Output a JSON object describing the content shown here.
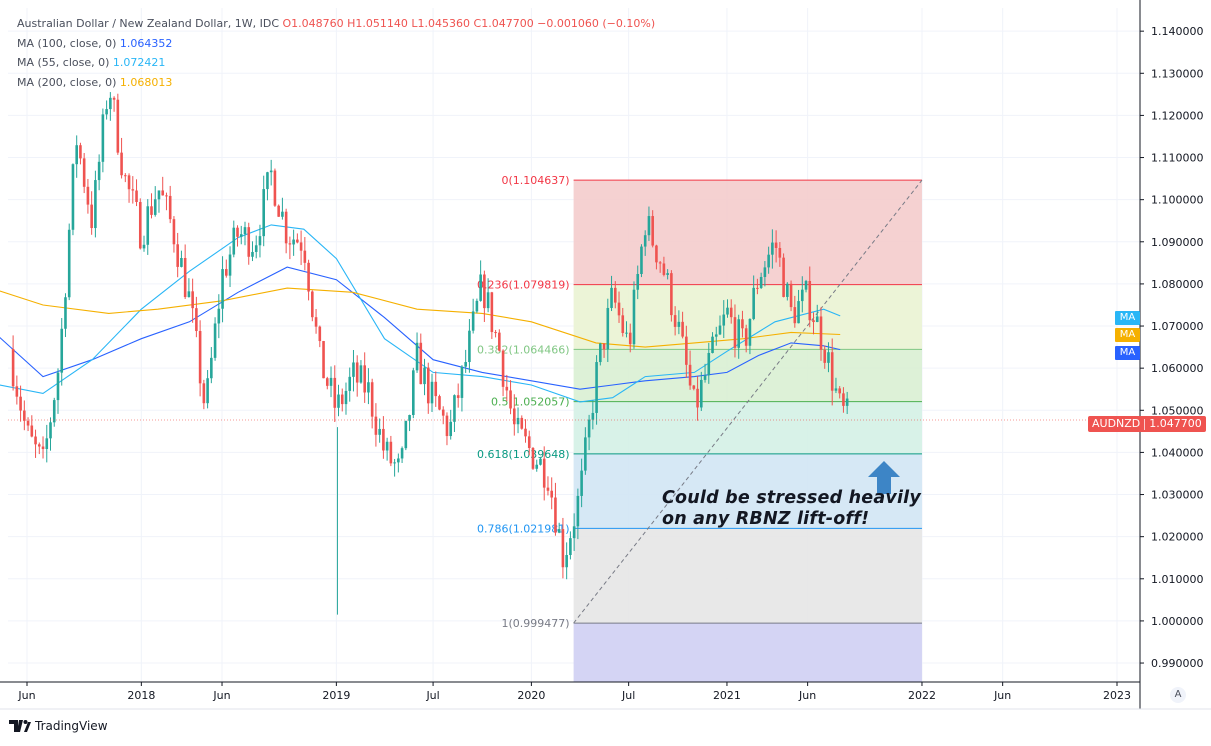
{
  "legend": {
    "title": "Australian Dollar / New Zealand Dollar, 1W, IDC",
    "ohlc": "O1.048760  H1.051140  L1.045360  C1.047700  −0.001060 (−0.10%)",
    "ma100_label": "MA (100, close, 0)",
    "ma100_value": "1.064352",
    "ma55_label": "MA (55, close, 0)",
    "ma55_value": "1.072421",
    "ma200_label": "MA (200, close, 0)",
    "ma200_value": "1.068013"
  },
  "colors": {
    "up": "#26a69a",
    "down": "#ef5350",
    "ma100": "#2962ff",
    "ma55": "#29b6f6",
    "ma200": "#f5b000"
  },
  "ma_badges": {
    "b1": "MA",
    "b2": "MA",
    "b3": "MA"
  },
  "price_tag": {
    "symbol": "AUDNZD",
    "price": "1.047700"
  },
  "annotation": {
    "line1": "Could be stressed heavily",
    "line2": "on any RBNZ lift-off!"
  },
  "arrow_icon": "up-arrow-icon",
  "branding": {
    "name": "TradingView"
  },
  "auto_scale": "A",
  "chart_data": {
    "type": "candlestick",
    "title": "Australian Dollar / New Zealand Dollar, 1W, IDC",
    "ylim": [
      0.9855,
      1.1455
    ],
    "y_ticks": [
      "1.140000",
      "1.130000",
      "1.120000",
      "1.110000",
      "1.100000",
      "1.090000",
      "1.080000",
      "1.070000",
      "1.060000",
      "1.050000",
      "1.040000",
      "1.030000",
      "1.020000",
      "1.010000",
      "1.000000",
      "0.990000"
    ],
    "y_tick_values": [
      1.14,
      1.13,
      1.12,
      1.11,
      1.1,
      1.09,
      1.08,
      1.07,
      1.06,
      1.05,
      1.04,
      1.03,
      1.02,
      1.01,
      1.0,
      0.99
    ],
    "x_ticks": [
      {
        "label": "Jun",
        "date": "2017-06"
      },
      {
        "label": "2018",
        "date": "2018-01"
      },
      {
        "label": "Jun",
        "date": "2018-06"
      },
      {
        "label": "2019",
        "date": "2019-01"
      },
      {
        "label": "Jul",
        "date": "2019-07"
      },
      {
        "label": "2020",
        "date": "2020-01"
      },
      {
        "label": "Jul",
        "date": "2020-07"
      },
      {
        "label": "2021",
        "date": "2021-01"
      },
      {
        "label": "Jun",
        "date": "2021-06"
      },
      {
        "label": "2022",
        "date": "2022-01"
      },
      {
        "label": "Jun",
        "date": "2022-06"
      },
      {
        "label": "2023",
        "date": "2023-01"
      }
    ],
    "price_path": [
      [
        "2017-04",
        1.082
      ],
      [
        "2017-06",
        1.044
      ],
      [
        "2017-07",
        1.037
      ],
      [
        "2017-08",
        1.062
      ],
      [
        "2017-09",
        1.115
      ],
      [
        "2017-10",
        1.095
      ],
      [
        "2017-11",
        1.128
      ],
      [
        "2017-12",
        1.105
      ],
      [
        "2018-01",
        1.092
      ],
      [
        "2018-02",
        1.103
      ],
      [
        "2018-03",
        1.093
      ],
      [
        "2018-04",
        1.076
      ],
      [
        "2018-05",
        1.05
      ],
      [
        "2018-06",
        1.082
      ],
      [
        "2018-07",
        1.092
      ],
      [
        "2018-08",
        1.09
      ],
      [
        "2018-09",
        1.106
      ],
      [
        "2018-10",
        1.092
      ],
      [
        "2018-11",
        1.09
      ],
      [
        "2018-12",
        1.062
      ],
      [
        "2019-01",
        1.05
      ],
      [
        "2019-02",
        1.058
      ],
      [
        "2019-03",
        1.055
      ],
      [
        "2019-04",
        1.04
      ],
      [
        "2019-05",
        1.035
      ],
      [
        "2019-06",
        1.062
      ],
      [
        "2019-07",
        1.052
      ],
      [
        "2019-08",
        1.045
      ],
      [
        "2019-09",
        1.062
      ],
      [
        "2019-10",
        1.08
      ],
      [
        "2019-11",
        1.065
      ],
      [
        "2019-12",
        1.045
      ],
      [
        "2020-01",
        1.04
      ],
      [
        "2020-02",
        1.035
      ],
      [
        "2020-03",
        1.015
      ],
      [
        "2020-04",
        1.03
      ],
      [
        "2020-05",
        1.058
      ],
      [
        "2020-06",
        1.077
      ],
      [
        "2020-07",
        1.065
      ],
      [
        "2020-08",
        1.095
      ],
      [
        "2020-09",
        1.085
      ],
      [
        "2020-10",
        1.07
      ],
      [
        "2020-11",
        1.05
      ],
      [
        "2020-12",
        1.062
      ],
      [
        "2021-01",
        1.073
      ],
      [
        "2021-02",
        1.065
      ],
      [
        "2021-03",
        1.082
      ],
      [
        "2021-04",
        1.09
      ],
      [
        "2021-05",
        1.073
      ],
      [
        "2021-06",
        1.077
      ],
      [
        "2021-07",
        1.066
      ],
      [
        "2021-08",
        1.05
      ],
      [
        "2021-08-20",
        1.0477
      ]
    ],
    "ma_series": [
      {
        "name": "MA (100, close, 0)",
        "points": [
          [
            "2017-03",
            1.072
          ],
          [
            "2017-07",
            1.058
          ],
          [
            "2017-10",
            1.062
          ],
          [
            "2018-01",
            1.067
          ],
          [
            "2018-04",
            1.071
          ],
          [
            "2018-07",
            1.078
          ],
          [
            "2018-10",
            1.084
          ],
          [
            "2019-01",
            1.081
          ],
          [
            "2019-04",
            1.072
          ],
          [
            "2019-07",
            1.062
          ],
          [
            "2019-10",
            1.059
          ],
          [
            "2020-01",
            1.057
          ],
          [
            "2020-04",
            1.055
          ],
          [
            "2020-06",
            1.056
          ],
          [
            "2020-08",
            1.057
          ],
          [
            "2020-11",
            1.058
          ],
          [
            "2021-01",
            1.059
          ],
          [
            "2021-03",
            1.063
          ],
          [
            "2021-05",
            1.066
          ],
          [
            "2021-07",
            1.0653
          ],
          [
            "2021-08",
            1.0644
          ]
        ]
      },
      {
        "name": "MA (55, close, 0)",
        "points": [
          [
            "2017-03",
            1.057
          ],
          [
            "2017-07",
            1.054
          ],
          [
            "2017-10",
            1.062
          ],
          [
            "2018-01",
            1.074
          ],
          [
            "2018-04",
            1.083
          ],
          [
            "2018-07",
            1.091
          ],
          [
            "2018-09",
            1.094
          ],
          [
            "2018-11",
            1.093
          ],
          [
            "2019-01",
            1.086
          ],
          [
            "2019-04",
            1.067
          ],
          [
            "2019-07",
            1.059
          ],
          [
            "2019-10",
            1.058
          ],
          [
            "2020-01",
            1.056
          ],
          [
            "2020-04",
            1.052
          ],
          [
            "2020-06",
            1.053
          ],
          [
            "2020-08",
            1.058
          ],
          [
            "2020-11",
            1.059
          ],
          [
            "2021-01",
            1.064
          ],
          [
            "2021-04",
            1.071
          ],
          [
            "2021-07",
            1.074
          ],
          [
            "2021-08",
            1.0724
          ]
        ]
      },
      {
        "name": "MA (200, close, 0)",
        "points": [
          [
            "2017-03",
            1.08
          ],
          [
            "2017-07",
            1.075
          ],
          [
            "2017-11",
            1.073
          ],
          [
            "2018-02",
            1.074
          ],
          [
            "2018-06",
            1.076
          ],
          [
            "2018-10",
            1.079
          ],
          [
            "2019-02",
            1.078
          ],
          [
            "2019-06",
            1.074
          ],
          [
            "2019-10",
            1.073
          ],
          [
            "2020-01",
            1.071
          ],
          [
            "2020-05",
            1.066
          ],
          [
            "2020-08",
            1.065
          ],
          [
            "2020-11",
            1.066
          ],
          [
            "2021-02",
            1.067
          ],
          [
            "2021-05",
            1.0685
          ],
          [
            "2021-08",
            1.068
          ]
        ]
      }
    ],
    "fibonacci": {
      "start": {
        "date": "2020-03-20",
        "price": 0.999477
      },
      "end": {
        "date": "2022-01-01",
        "price": 1.104637
      },
      "levels": [
        {
          "label": "0(1.104637)",
          "level": 0,
          "price": 1.104637,
          "color": "#f23645"
        },
        {
          "label": "0.236(1.079819)",
          "level": 0.236,
          "price": 1.079819,
          "color": "#f23645"
        },
        {
          "label": "0.382(1.064466)",
          "level": 0.382,
          "price": 1.064466,
          "color": "#81c784"
        },
        {
          "label": "0.5(1.052057)",
          "level": 0.5,
          "price": 1.052057,
          "color": "#4caf50"
        },
        {
          "label": "0.618(1.039648)",
          "level": 0.618,
          "price": 1.039648,
          "color": "#089981"
        },
        {
          "label": "0.786(1.021981)",
          "level": 0.786,
          "price": 1.021981,
          "color": "#2196f3"
        },
        {
          "label": "1(0.999477)",
          "level": 1,
          "price": 0.999477,
          "color": "#787b86"
        }
      ],
      "zone_colors": [
        "#f4cccc",
        "#eaf3d3",
        "#d9f0d3",
        "#d4f1e6",
        "#d2e6f4",
        "#e6e6e6",
        "#d4d4f4"
      ]
    },
    "last_price": 1.0477
  }
}
